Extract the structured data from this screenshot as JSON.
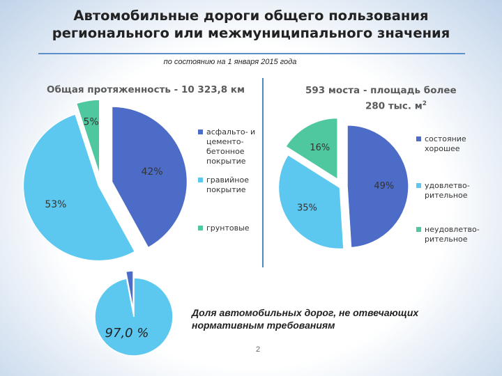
{
  "title_line1": "Автомобильные дороги общего пользования",
  "title_line2": "регионального или межмуниципального значения",
  "subtitle": "по состоянию на 1 января 2015 года",
  "colors": {
    "dark_blue": "#4c6cc8",
    "light_blue": "#5cc8f0",
    "green": "#4fc8a0",
    "divider": "#4f86c6"
  },
  "chart_data": [
    {
      "type": "pie",
      "title": "Общая протяженность - 10 323,8 км",
      "slices": [
        {
          "label": "асфальто- и цементо- бетонное покрытие",
          "legend_lines": [
            "асфальто- и",
            "цементо-",
            "бетонное",
            "покрытие"
          ],
          "value": 42,
          "display": "42%",
          "color": "#4c6cc8"
        },
        {
          "label": "гравийное покрытие",
          "legend_lines": [
            "гравийное",
            "покрытие"
          ],
          "value": 53,
          "display": "53%",
          "color": "#5cc8f0"
        },
        {
          "label": "грунтовые",
          "legend_lines": [
            "грунтовые"
          ],
          "value": 5,
          "display": "5%",
          "color": "#4fc8a0"
        }
      ]
    },
    {
      "type": "pie",
      "title_line1": "593 моста - площадь более",
      "title_line2": "280 тыс. м",
      "title_sup": "2",
      "slices": [
        {
          "label": "состояние хорошее",
          "legend_lines": [
            "состояние",
            "хорошее"
          ],
          "value": 49,
          "display": "49%",
          "color": "#4c6cc8"
        },
        {
          "label": "удовлетво- рительное",
          "legend_lines": [
            "удовлетво-",
            "рительное"
          ],
          "value": 35,
          "display": "35%",
          "color": "#5cc8f0"
        },
        {
          "label": "неудовлетво- рительное",
          "legend_lines": [
            "неудовлетво-",
            "рительное"
          ],
          "value": 16,
          "display": "16%",
          "color": "#4fc8a0"
        }
      ]
    },
    {
      "type": "pie",
      "slices": [
        {
          "value": 97.0,
          "display": "97,0 %",
          "color": "#5cc8f0"
        },
        {
          "value": 3.0,
          "color": "#4c6cc8"
        }
      ]
    }
  ],
  "bottom_text": "Доля автомобильных дорог, не отвечающих нормативным требованиям",
  "page_number": "2"
}
